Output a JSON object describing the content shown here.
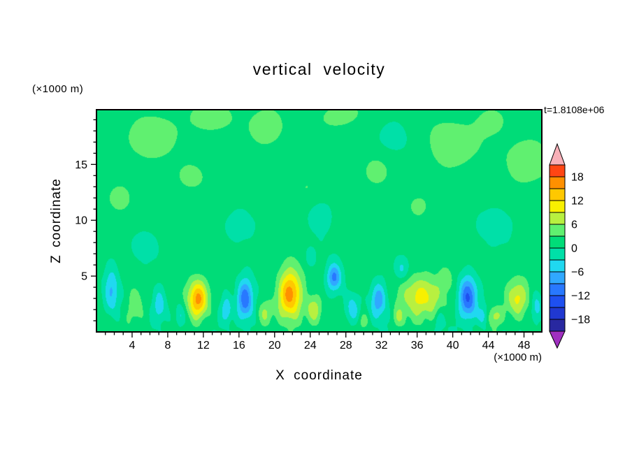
{
  "title": "vertical velocity",
  "time_label": "t=1.8108e+06",
  "axes": {
    "xlabel": "X coordinate",
    "ylabel": "Z coordinate",
    "x_units": "(×1000 m)",
    "y_units": "(×1000 m)"
  },
  "colors": {
    "background": "#ffffff",
    "frame": "#000000",
    "text": "#000000"
  },
  "chart_data": {
    "type": "heatmap",
    "title": "vertical velocity",
    "xlabel": "X coordinate",
    "ylabel": "Z coordinate",
    "annotations": [
      "t=1.8108e+06",
      "(×1000 m)"
    ],
    "xlim": [
      0,
      50
    ],
    "ylim": [
      0,
      19.9
    ],
    "x_ticks": [
      4,
      8,
      12,
      16,
      20,
      24,
      28,
      32,
      36,
      40,
      44,
      48
    ],
    "x_minor_step": 1,
    "x_major_step": 4,
    "y_ticks": [
      5,
      10,
      15
    ],
    "y_minor_step": 1,
    "y_major_step": 5,
    "grid": false,
    "legend_position": "colorbar-right",
    "colorbar": {
      "levels": [
        -21,
        -18,
        -15,
        -12,
        -9,
        -6,
        -3,
        0,
        3,
        6,
        9,
        12,
        15,
        18,
        21
      ],
      "labels": [
        "18",
        "12",
        "6",
        "0",
        "−6",
        "−12",
        "−18"
      ],
      "label_values": [
        18,
        12,
        6,
        0,
        -6,
        -12,
        -18
      ],
      "band_colors": [
        "#A030C0",
        "#2828A0",
        "#2038D0",
        "#1E50F0",
        "#2878FF",
        "#30A8FF",
        "#20D8F0",
        "#00E0A8",
        "#00DC78",
        "#60F070",
        "#B8F040",
        "#F8F000",
        "#FFC800",
        "#FF9000",
        "#FF4614",
        "#F8B0B8"
      ]
    },
    "field": {
      "base": 1.0,
      "feature_fields": [
        "x",
        "z",
        "amplitude",
        "sigma_x",
        "sigma_z"
      ],
      "features": [
        [
          11.4,
          2.9,
          15,
          1.1,
          1.7
        ],
        [
          21.7,
          3.4,
          16,
          1.3,
          2.1
        ],
        [
          24.4,
          2.0,
          7,
          0.9,
          1.2
        ],
        [
          36.6,
          3.2,
          9,
          2.3,
          1.9
        ],
        [
          47.2,
          3.0,
          9,
          1.3,
          1.6
        ],
        [
          44.7,
          1.4,
          6,
          0.9,
          0.9
        ],
        [
          19.0,
          1.6,
          5,
          0.8,
          1.1
        ],
        [
          4.4,
          2.4,
          5,
          0.9,
          1.6
        ],
        [
          33.9,
          1.3,
          4.5,
          0.7,
          0.9
        ],
        [
          30.0,
          1.0,
          3.5,
          0.6,
          0.7
        ],
        [
          39.2,
          4.8,
          4,
          0.8,
          1.0
        ],
        [
          16.7,
          2.9,
          -13,
          0.9,
          1.8
        ],
        [
          14.6,
          2.0,
          -7,
          0.6,
          1.2
        ],
        [
          26.7,
          4.9,
          -11,
          0.8,
          1.2
        ],
        [
          28.7,
          2.0,
          -6,
          0.7,
          1.3
        ],
        [
          31.7,
          2.9,
          -9,
          0.9,
          1.6
        ],
        [
          41.7,
          3.0,
          -14,
          1.0,
          1.9
        ],
        [
          43.4,
          1.4,
          -7,
          0.6,
          1.0
        ],
        [
          1.7,
          3.6,
          -7,
          0.8,
          2.2
        ],
        [
          7.1,
          2.4,
          -6,
          0.7,
          1.6
        ],
        [
          9.4,
          1.4,
          -5,
          0.5,
          1.0
        ],
        [
          49.4,
          2.2,
          -6,
          0.6,
          1.4
        ],
        [
          34.3,
          5.6,
          -4.5,
          0.8,
          1.0
        ],
        [
          24.0,
          6.6,
          -3.5,
          0.6,
          0.9
        ],
        [
          38.5,
          1.0,
          -4,
          0.5,
          0.8
        ],
        [
          6.5,
          17.6,
          4,
          3.4,
          2.1
        ],
        [
          13.0,
          19.3,
          3.5,
          2.4,
          1.6
        ],
        [
          19.3,
          18.6,
          4,
          2.1,
          2.1
        ],
        [
          27.0,
          19.2,
          3.5,
          2.6,
          1.6
        ],
        [
          31.2,
          14.2,
          3,
          1.6,
          1.5
        ],
        [
          40.0,
          16.6,
          4,
          3.1,
          2.4
        ],
        [
          48.2,
          15.0,
          4,
          2.6,
          2.6
        ],
        [
          36.2,
          11.2,
          3,
          1.5,
          1.3
        ],
        [
          2.8,
          12.2,
          3,
          1.6,
          1.6
        ],
        [
          10.5,
          13.8,
          2.8,
          1.8,
          1.4
        ],
        [
          23.5,
          13.0,
          2.6,
          1.6,
          1.3
        ],
        [
          44.5,
          19.0,
          3.2,
          2.0,
          1.4
        ],
        [
          45.2,
          9.8,
          -2.6,
          2.0,
          1.8
        ],
        [
          25.5,
          10.6,
          -2.2,
          1.5,
          1.4
        ],
        [
          15.5,
          9.0,
          -2.2,
          1.7,
          1.5
        ],
        [
          33.0,
          17.5,
          -2.0,
          1.8,
          1.5
        ],
        [
          5.5,
          7.5,
          -2.4,
          1.5,
          1.5
        ]
      ],
      "texture": {
        "amp": 1.7,
        "decay": 3.0,
        "upper_amp": 0.55
      }
    }
  }
}
